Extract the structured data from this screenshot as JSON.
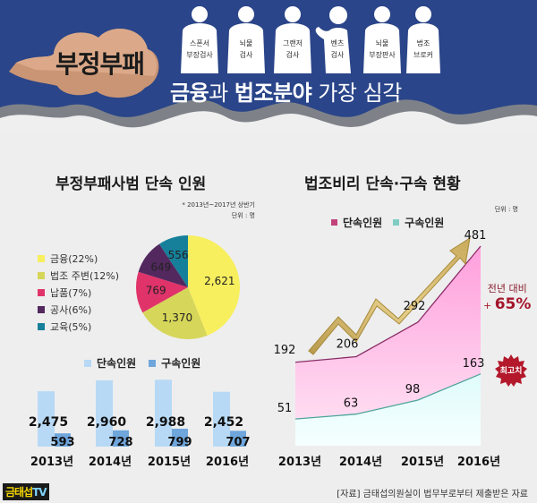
{
  "header": {
    "cloud_title": "부정부패",
    "headline": {
      "part1": "금융",
      "part2": "과 ",
      "part3": "법조분야",
      "part4": " 가장 심각"
    },
    "figures": [
      {
        "line1": "스폰서",
        "line2": "부장검사"
      },
      {
        "line1": "뇌물",
        "line2": "검사"
      },
      {
        "line1": "그랜저",
        "line2": "검사"
      },
      {
        "line1": "벤츠",
        "line2": "검사"
      },
      {
        "line1": "뇌물",
        "line2": "부장판사"
      },
      {
        "line1": "법조",
        "line2": "브로커"
      }
    ]
  },
  "left_section": {
    "title": "부정부패사범 단속 인원",
    "note_period": "* 2013년~2017년 상반기",
    "note_unit": "단위 : 명",
    "pie_legend": [
      {
        "label": "금융(22%)",
        "color": "#f7ef5e"
      },
      {
        "label": "법조 주변(12%)",
        "color": "#d6d65a"
      },
      {
        "label": "납품(7%)",
        "color": "#e0336a"
      },
      {
        "label": "공사(6%)",
        "color": "#52285e"
      },
      {
        "label": "교육(5%)",
        "color": "#16809a"
      }
    ],
    "bar_legend": [
      {
        "label": "단속인원",
        "color": "#b7d9f5"
      },
      {
        "label": "구속인원",
        "color": "#6fa6dc"
      }
    ]
  },
  "right_section": {
    "title": "법조비리 단속·구속 현황",
    "note_unit": "단위 : 명",
    "legend": [
      {
        "label": "단속인원",
        "color": "#c2427a"
      },
      {
        "label": "구속인원",
        "color": "#7fcdc3"
      }
    ],
    "yoy_label": "전년 대비",
    "yoy_sign": "+ ",
    "yoy_value": "65%",
    "badge": "최고치"
  },
  "footer": {
    "logo_text": "금태섭",
    "logo_tv": "TV",
    "source": "[자료] 금태섭의원실이 법무부로부터 제출받은 자료"
  },
  "chart_data": [
    {
      "type": "pie",
      "title": "부정부패사범 단속 인원",
      "subtitle": "* 2013년~2017년 상반기, 단위 : 명",
      "categories": [
        "금융",
        "법조 주변",
        "납품",
        "공사",
        "교육"
      ],
      "values": [
        2621,
        1370,
        769,
        649,
        556
      ],
      "percent_labels": [
        "22%",
        "12%",
        "7%",
        "6%",
        "5%"
      ],
      "colors": [
        "#f7ef5e",
        "#d6d65a",
        "#e0336a",
        "#52285e",
        "#16809a"
      ],
      "legend_position": "left"
    },
    {
      "type": "bar",
      "title": "부정부패사범 단속·구속 인원 (연도별)",
      "categories": [
        "2013년",
        "2014년",
        "2015년",
        "2016년"
      ],
      "series": [
        {
          "name": "단속인원",
          "values": [
            2475,
            2960,
            2988,
            2452
          ],
          "color": "#b7d9f5"
        },
        {
          "name": "구속인원",
          "values": [
            593,
            728,
            799,
            707
          ],
          "color": "#6fa6dc"
        }
      ],
      "legend_position": "top"
    },
    {
      "type": "area",
      "title": "법조비리 단속·구속 현황",
      "ylabel": "단위 : 명",
      "categories": [
        "2013년",
        "2014년",
        "2015년",
        "2016년"
      ],
      "series": [
        {
          "name": "단속인원",
          "values": [
            192,
            206,
            292,
            481
          ],
          "color": "#ffb3e6"
        },
        {
          "name": "구속인원",
          "values": [
            51,
            63,
            98,
            163
          ],
          "color": "#e9ffff"
        }
      ],
      "annotations": [
        "전년 대비 + 65%",
        "최고치"
      ],
      "legend_position": "top"
    }
  ]
}
